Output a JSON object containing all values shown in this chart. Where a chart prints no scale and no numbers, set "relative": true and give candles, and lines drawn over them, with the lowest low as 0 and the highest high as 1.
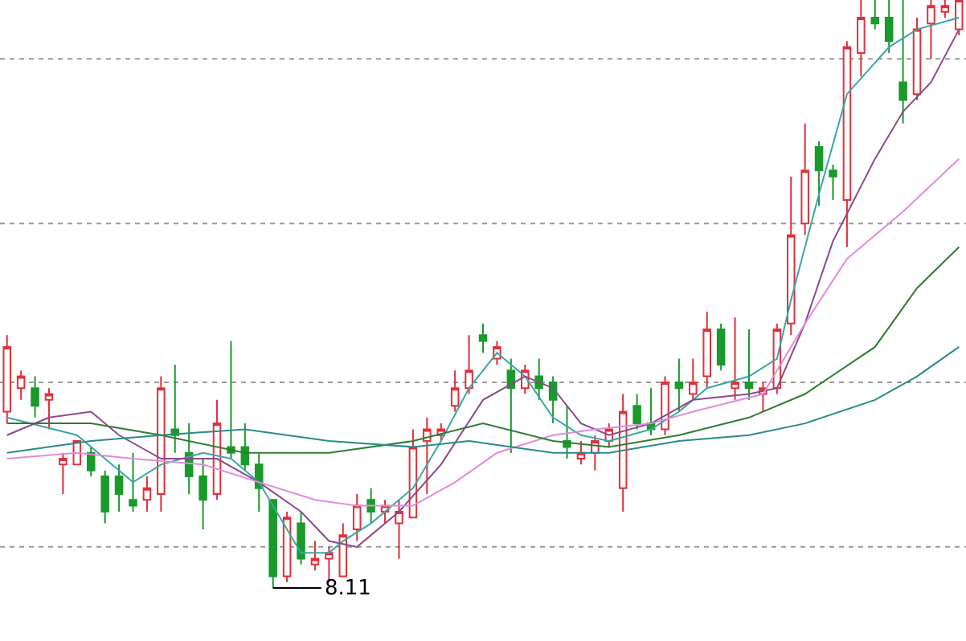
{
  "chart_data": {
    "type": "candlestick",
    "relative": true,
    "categories": [
      null,
      null,
      null,
      null,
      null,
      null,
      null,
      null,
      null,
      null,
      null,
      null,
      null,
      null,
      null,
      null,
      null,
      null,
      null,
      null,
      null,
      null,
      null,
      null,
      null,
      null,
      null,
      null,
      null,
      null,
      null,
      null,
      null,
      null,
      null,
      null,
      null,
      null,
      null,
      null,
      null,
      null,
      null,
      null,
      null,
      null,
      null,
      null,
      null,
      null,
      null,
      null,
      null,
      null,
      null,
      null,
      null,
      null,
      null,
      null,
      null,
      null,
      null,
      null,
      null,
      null,
      null,
      null,
      null
    ],
    "ohlc": [
      [
        0.3,
        0.43,
        0.28,
        0.41
      ],
      [
        0.34,
        0.37,
        0.32,
        0.36
      ],
      [
        0.34,
        0.36,
        0.29,
        0.31
      ],
      [
        0.32,
        0.34,
        0.27,
        0.33
      ],
      [
        0.21,
        0.23,
        0.16,
        0.22
      ],
      [
        0.21,
        0.25,
        0.21,
        0.25
      ],
      [
        0.23,
        0.24,
        0.19,
        0.2
      ],
      [
        0.19,
        0.2,
        0.11,
        0.13
      ],
      [
        0.19,
        0.21,
        0.13,
        0.16
      ],
      [
        0.15,
        0.23,
        0.13,
        0.14
      ],
      [
        0.15,
        0.19,
        0.13,
        0.17
      ],
      [
        0.16,
        0.36,
        0.13,
        0.34
      ],
      [
        0.27,
        0.38,
        0.23,
        0.26
      ],
      [
        0.23,
        0.28,
        0.16,
        0.19
      ],
      [
        0.19,
        0.22,
        0.1,
        0.15
      ],
      [
        0.16,
        0.32,
        0.15,
        0.28
      ],
      [
        0.24,
        0.42,
        0.22,
        0.23
      ],
      [
        0.24,
        0.28,
        0.2,
        0.21
      ],
      [
        0.21,
        0.23,
        0.13,
        0.17
      ],
      [
        0.15,
        0.15,
        0.0,
        0.02
      ],
      [
        0.02,
        0.13,
        0.01,
        0.12
      ],
      [
        0.11,
        0.13,
        0.04,
        0.05
      ],
      [
        0.04,
        0.08,
        0.03,
        0.05
      ],
      [
        0.05,
        0.07,
        0.01,
        0.06
      ],
      [
        0.02,
        0.11,
        0.02,
        0.09
      ],
      [
        0.1,
        0.16,
        0.08,
        0.14
      ],
      [
        0.15,
        0.17,
        0.11,
        0.13
      ],
      [
        0.13,
        0.15,
        0.11,
        0.14
      ],
      [
        0.11,
        0.15,
        0.05,
        0.13
      ],
      [
        0.12,
        0.27,
        0.12,
        0.24
      ],
      [
        0.25,
        0.29,
        0.16,
        0.27
      ],
      [
        0.26,
        0.28,
        0.25,
        0.27
      ],
      [
        0.31,
        0.37,
        0.3,
        0.34
      ],
      [
        0.34,
        0.43,
        0.33,
        0.37
      ],
      [
        0.43,
        0.45,
        0.4,
        0.42
      ],
      [
        0.39,
        0.42,
        0.38,
        0.41
      ],
      [
        0.37,
        0.39,
        0.23,
        0.34
      ],
      [
        0.34,
        0.38,
        0.33,
        0.37
      ],
      [
        0.36,
        0.39,
        0.32,
        0.34
      ],
      [
        0.35,
        0.36,
        0.28,
        0.32
      ],
      [
        0.25,
        0.31,
        0.22,
        0.24
      ],
      [
        0.22,
        0.25,
        0.21,
        0.23
      ],
      [
        0.23,
        0.26,
        0.2,
        0.25
      ],
      [
        0.25,
        0.28,
        0.24,
        0.27
      ],
      [
        0.17,
        0.33,
        0.13,
        0.3
      ],
      [
        0.31,
        0.33,
        0.27,
        0.28
      ],
      [
        0.28,
        0.34,
        0.26,
        0.27
      ],
      [
        0.27,
        0.36,
        0.26,
        0.35
      ],
      [
        0.35,
        0.39,
        0.3,
        0.34
      ],
      [
        0.33,
        0.39,
        0.32,
        0.35
      ],
      [
        0.36,
        0.47,
        0.34,
        0.44
      ],
      [
        0.44,
        0.45,
        0.37,
        0.38
      ],
      [
        0.34,
        0.46,
        0.32,
        0.35
      ],
      [
        0.35,
        0.44,
        0.32,
        0.34
      ],
      [
        0.33,
        0.35,
        0.3,
        0.34
      ],
      [
        0.34,
        0.45,
        0.33,
        0.44
      ],
      [
        0.45,
        0.7,
        0.43,
        0.6
      ],
      [
        0.62,
        0.79,
        0.6,
        0.71
      ],
      [
        0.75,
        0.76,
        0.65,
        0.71
      ],
      [
        0.71,
        0.72,
        0.66,
        0.7
      ],
      [
        0.66,
        0.93,
        0.58,
        0.92
      ],
      [
        0.91,
        1.0,
        0.87,
        0.97
      ],
      [
        0.97,
        1.0,
        0.95,
        0.96
      ],
      [
        0.97,
        1.0,
        0.91,
        0.93
      ],
      [
        0.86,
        1.0,
        0.79,
        0.83
      ],
      [
        0.84,
        0.97,
        0.83,
        0.95
      ],
      [
        0.96,
        1.0,
        0.9,
        0.99
      ],
      [
        0.98,
        1.0,
        0.97,
        0.99
      ],
      [
        0.95,
        1.0,
        0.94,
        1.0
      ]
    ],
    "colors": [
      "#e0303a",
      "#e0303a",
      "#1a9a2a",
      "#e0303a",
      "#e0303a",
      "#e0303a",
      "#1a9a2a",
      "#1a9a2a",
      "#1a9a2a",
      "#1a9a2a",
      "#e0303a",
      "#e0303a",
      "#1a9a2a",
      "#1a9a2a",
      "#1a9a2a",
      "#e0303a",
      "#1a9a2a",
      "#1a9a2a",
      "#1a9a2a",
      "#1a9a2a",
      "#e0303a",
      "#1a9a2a",
      "#e0303a",
      "#e0303a",
      "#e0303a",
      "#e0303a",
      "#1a9a2a",
      "#e0303a",
      "#e0303a",
      "#e0303a",
      "#e0303a",
      "#e0303a",
      "#e0303a",
      "#e0303a",
      "#1a9a2a",
      "#e0303a",
      "#1a9a2a",
      "#e0303a",
      "#1a9a2a",
      "#1a9a2a",
      "#1a9a2a",
      "#e0303a",
      "#e0303a",
      "#e0303a",
      "#e0303a",
      "#1a9a2a",
      "#1a9a2a",
      "#e0303a",
      "#1a9a2a",
      "#e0303a",
      "#e0303a",
      "#1a9a2a",
      "#e0303a",
      "#1a9a2a",
      "#e0303a",
      "#e0303a",
      "#e0303a",
      "#e0303a",
      "#1a9a2a",
      "#1a9a2a",
      "#e0303a",
      "#e0303a",
      "#1a9a2a",
      "#1a9a2a",
      "#1a9a2a",
      "#e0303a",
      "#e0303a",
      "#e0303a",
      "#e0303a"
    ],
    "series": [
      {
        "type": "line",
        "color": "#3aa6a6",
        "values": [
          0.29,
          null,
          null,
          null,
          null,
          0.26,
          null,
          0.22,
          null,
          0.18,
          null,
          0.21,
          null,
          null,
          0.23,
          null,
          0.22,
          null,
          0.18,
          null,
          null,
          0.06,
          null,
          0.06,
          0.08,
          null,
          0.11,
          null,
          null,
          0.17,
          null,
          0.25,
          null,
          0.34,
          null,
          0.4,
          null,
          0.36,
          null,
          0.29,
          null,
          0.26,
          null,
          0.25,
          null,
          null,
          0.27,
          null,
          0.3,
          null,
          0.34,
          null,
          null,
          0.36,
          null,
          0.39,
          0.49,
          null,
          0.67,
          null,
          0.84,
          null,
          null,
          0.92,
          null,
          0.95,
          null,
          null,
          0.97
        ]
      },
      {
        "type": "line",
        "color": "#8b4a8b",
        "values": [
          0.26,
          null,
          null,
          0.29,
          null,
          null,
          0.3,
          null,
          0.26,
          null,
          null,
          0.22,
          null,
          null,
          null,
          0.22,
          null,
          null,
          0.18,
          null,
          null,
          0.13,
          null,
          0.08,
          null,
          0.07,
          null,
          null,
          0.13,
          null,
          null,
          0.21,
          null,
          null,
          0.32,
          null,
          null,
          0.36,
          null,
          0.34,
          null,
          0.28,
          null,
          0.26,
          null,
          null,
          0.28,
          null,
          null,
          0.32,
          null,
          null,
          null,
          0.33,
          null,
          0.34,
          null,
          0.45,
          null,
          0.59,
          null,
          null,
          0.73,
          null,
          0.81,
          null,
          0.86,
          null,
          0.95
        ]
      },
      {
        "type": "line",
        "color": "#e08ae0",
        "values": [
          0.22,
          null,
          null,
          null,
          null,
          0.23,
          null,
          null,
          null,
          0.22,
          null,
          null,
          null,
          null,
          0.21,
          null,
          null,
          null,
          0.18,
          null,
          null,
          null,
          0.15,
          null,
          null,
          0.14,
          null,
          null,
          null,
          0.14,
          null,
          null,
          0.18,
          null,
          null,
          0.23,
          null,
          null,
          null,
          0.26,
          null,
          null,
          0.27,
          null,
          null,
          null,
          0.28,
          null,
          null,
          0.3,
          null,
          null,
          null,
          null,
          0.33,
          null,
          null,
          0.45,
          null,
          null,
          0.56,
          null,
          null,
          null,
          0.64,
          null,
          null,
          null,
          0.73
        ]
      },
      {
        "type": "line",
        "color": "#2e7d32",
        "values": [
          0.28,
          null,
          null,
          null,
          null,
          null,
          0.28,
          null,
          null,
          null,
          null,
          0.26,
          null,
          null,
          null,
          null,
          null,
          0.23,
          null,
          null,
          null,
          null,
          null,
          0.23,
          null,
          null,
          null,
          null,
          null,
          0.25,
          null,
          null,
          null,
          null,
          0.28,
          null,
          null,
          null,
          null,
          0.25,
          null,
          null,
          null,
          0.24,
          null,
          null,
          null,
          null,
          0.26,
          null,
          null,
          null,
          null,
          0.29,
          null,
          null,
          null,
          0.33,
          null,
          null,
          null,
          null,
          0.41,
          null,
          null,
          0.51,
          null,
          null,
          0.58
        ]
      },
      {
        "type": "line",
        "color": "#2a8a8a",
        "values": [
          0.23,
          null,
          null,
          null,
          null,
          null,
          0.25,
          null,
          null,
          null,
          null,
          0.26,
          null,
          null,
          null,
          null,
          null,
          0.27,
          null,
          null,
          null,
          null,
          null,
          0.25,
          null,
          null,
          null,
          null,
          null,
          0.24,
          null,
          null,
          null,
          0.25,
          null,
          null,
          null,
          null,
          null,
          0.23,
          null,
          null,
          null,
          0.23,
          null,
          null,
          null,
          null,
          0.25,
          null,
          null,
          null,
          null,
          0.26,
          null,
          null,
          null,
          0.28,
          null,
          null,
          null,
          null,
          0.32,
          null,
          null,
          0.36,
          null,
          null,
          0.41
        ]
      }
    ],
    "ref_lines": [
      {
        "axis": "y",
        "value": 0.9,
        "color": "#999999",
        "line_style": "dotted"
      },
      {
        "axis": "y",
        "value": 0.62,
        "color": "#999999",
        "line_style": "dotted"
      },
      {
        "axis": "y",
        "value": 0.35,
        "color": "#999999",
        "line_style": "dotted"
      },
      {
        "axis": "y",
        "value": 0.07,
        "color": "#999999",
        "line_style": "dotted"
      }
    ],
    "annotations": [
      "8.11"
    ]
  }
}
